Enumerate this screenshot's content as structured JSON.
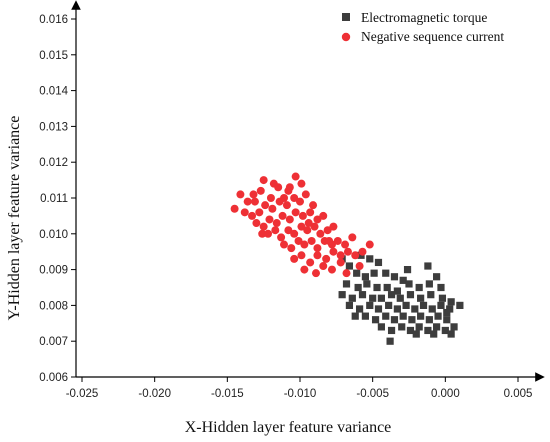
{
  "chart_data": {
    "type": "scatter",
    "title": "",
    "xlabel": "X-Hidden layer feature variance",
    "ylabel": "Y-Hidden layer feature variance",
    "xlim": [
      -0.025,
      0.005
    ],
    "ylim": [
      0.006,
      0.016
    ],
    "x_ticks": [
      "-0.025",
      "-0.020",
      "-0.015",
      "-0.010",
      "-0.005",
      "0.000",
      "0.005"
    ],
    "y_ticks": [
      "0.006",
      "0.007",
      "0.008",
      "0.009",
      "0.010",
      "0.011",
      "0.012",
      "0.013",
      "0.014",
      "0.015",
      "0.016"
    ],
    "x_tick_values": [
      -0.025,
      -0.02,
      -0.015,
      -0.01,
      -0.005,
      0.0,
      0.005
    ],
    "y_tick_values": [
      0.006,
      0.007,
      0.008,
      0.009,
      0.01,
      0.011,
      0.012,
      0.013,
      0.014,
      0.015,
      0.016
    ],
    "grid": false,
    "legend_position": "top-right",
    "series": [
      {
        "name": "Electromagnetic torque",
        "marker": "square",
        "color": "#3d3d3d",
        "points": [
          [
            -0.0071,
            0.0093
          ],
          [
            -0.0066,
            0.0091
          ],
          [
            -0.0058,
            0.0094
          ],
          [
            -0.0052,
            0.0093
          ],
          [
            -0.0046,
            0.0092
          ],
          [
            -0.0061,
            0.0089
          ],
          [
            -0.0055,
            0.0088
          ],
          [
            -0.0049,
            0.0089
          ],
          [
            -0.0041,
            0.0089
          ],
          [
            -0.0035,
            0.0088
          ],
          [
            -0.0029,
            0.0087
          ],
          [
            -0.0068,
            0.0086
          ],
          [
            -0.006,
            0.0085
          ],
          [
            -0.0054,
            0.0086
          ],
          [
            -0.0047,
            0.0085
          ],
          [
            -0.004,
            0.0085
          ],
          [
            -0.0033,
            0.0084
          ],
          [
            -0.0025,
            0.0086
          ],
          [
            -0.0018,
            0.0085
          ],
          [
            -0.0011,
            0.0086
          ],
          [
            -0.0003,
            0.0085
          ],
          [
            -0.0071,
            0.0083
          ],
          [
            -0.0064,
            0.0082
          ],
          [
            -0.0057,
            0.0083
          ],
          [
            -0.005,
            0.0082
          ],
          [
            -0.0044,
            0.0082
          ],
          [
            -0.0037,
            0.0083
          ],
          [
            -0.0031,
            0.0082
          ],
          [
            -0.0024,
            0.0083
          ],
          [
            -0.0017,
            0.0082
          ],
          [
            -0.001,
            0.0083
          ],
          [
            -0.0002,
            0.0082
          ],
          [
            0.0004,
            0.0081
          ],
          [
            -0.0066,
            0.008
          ],
          [
            -0.0059,
            0.0079
          ],
          [
            -0.0052,
            0.008
          ],
          [
            -0.0046,
            0.0079
          ],
          [
            -0.0039,
            0.008
          ],
          [
            -0.0033,
            0.0079
          ],
          [
            -0.0027,
            0.008
          ],
          [
            -0.0021,
            0.0079
          ],
          [
            -0.0015,
            0.008
          ],
          [
            -0.0009,
            0.0079
          ],
          [
            -0.0003,
            0.008
          ],
          [
            0.0003,
            0.0079
          ],
          [
            0.001,
            0.008
          ],
          [
            -0.0062,
            0.0077
          ],
          [
            -0.0055,
            0.0077
          ],
          [
            -0.0048,
            0.0076
          ],
          [
            -0.0041,
            0.0077
          ],
          [
            -0.0035,
            0.0076
          ],
          [
            -0.0029,
            0.0077
          ],
          [
            -0.0023,
            0.0076
          ],
          [
            -0.0017,
            0.0077
          ],
          [
            -0.0011,
            0.0076
          ],
          [
            -0.0005,
            0.0077
          ],
          [
            0.0001,
            0.0076
          ],
          [
            0.0006,
            0.0074
          ],
          [
            -0.0044,
            0.0074
          ],
          [
            -0.0037,
            0.0073
          ],
          [
            -0.003,
            0.0074
          ],
          [
            -0.0024,
            0.0073
          ],
          [
            -0.0018,
            0.0074
          ],
          [
            -0.0012,
            0.0073
          ],
          [
            -0.0006,
            0.0074
          ],
          [
            0.0,
            0.0073
          ],
          [
            -0.0038,
            0.007
          ],
          [
            -0.002,
            0.0072
          ],
          [
            -0.0008,
            0.0072
          ],
          [
            0.0004,
            0.0072
          ],
          [
            -0.0026,
            0.009
          ],
          [
            -0.0012,
            0.0091
          ],
          [
            -0.0006,
            0.0088
          ],
          [
            0.0001,
            0.0078
          ]
        ]
      },
      {
        "name": "Negative sequence current",
        "marker": "circle",
        "color": "#ee3035",
        "points": [
          [
            -0.0145,
            0.0107
          ],
          [
            -0.0141,
            0.0111
          ],
          [
            -0.0136,
            0.0109
          ],
          [
            -0.0132,
            0.0111
          ],
          [
            -0.0127,
            0.0112
          ],
          [
            -0.0125,
            0.0115
          ],
          [
            -0.012,
            0.011
          ],
          [
            -0.0115,
            0.0113
          ],
          [
            -0.0111,
            0.011
          ],
          [
            -0.0107,
            0.0113
          ],
          [
            -0.0103,
            0.0116
          ],
          [
            -0.0099,
            0.0114
          ],
          [
            -0.0138,
            0.0106
          ],
          [
            -0.0133,
            0.0105
          ],
          [
            -0.0128,
            0.0106
          ],
          [
            -0.0124,
            0.0108
          ],
          [
            -0.0119,
            0.0107
          ],
          [
            -0.0114,
            0.0109
          ],
          [
            -0.0109,
            0.0108
          ],
          [
            -0.0104,
            0.011
          ],
          [
            -0.01,
            0.0109
          ],
          [
            -0.0096,
            0.0111
          ],
          [
            -0.0091,
            0.0108
          ],
          [
            -0.013,
            0.0103
          ],
          [
            -0.0125,
            0.0102
          ],
          [
            -0.0121,
            0.0104
          ],
          [
            -0.0116,
            0.0103
          ],
          [
            -0.0112,
            0.0105
          ],
          [
            -0.0107,
            0.0104
          ],
          [
            -0.0103,
            0.0106
          ],
          [
            -0.0098,
            0.0105
          ],
          [
            -0.0093,
            0.0106
          ],
          [
            -0.0088,
            0.0104
          ],
          [
            -0.0084,
            0.0105
          ],
          [
            -0.0122,
            0.01
          ],
          [
            -0.0117,
            0.0101
          ],
          [
            -0.0113,
            0.0099
          ],
          [
            -0.0108,
            0.0101
          ],
          [
            -0.0104,
            0.01
          ],
          [
            -0.0099,
            0.0102
          ],
          [
            -0.0095,
            0.0101
          ],
          [
            -0.009,
            0.0102
          ],
          [
            -0.0086,
            0.01
          ],
          [
            -0.0081,
            0.0101
          ],
          [
            -0.0077,
            0.0102
          ],
          [
            -0.0111,
            0.0097
          ],
          [
            -0.0106,
            0.0096
          ],
          [
            -0.0101,
            0.0098
          ],
          [
            -0.0097,
            0.0097
          ],
          [
            -0.0092,
            0.0098
          ],
          [
            -0.0088,
            0.0096
          ],
          [
            -0.0083,
            0.0098
          ],
          [
            -0.0078,
            0.0097
          ],
          [
            -0.0074,
            0.0098
          ],
          [
            -0.0069,
            0.0097
          ],
          [
            -0.0064,
            0.0099
          ],
          [
            -0.0104,
            0.0093
          ],
          [
            -0.0099,
            0.0094
          ],
          [
            -0.0093,
            0.0092
          ],
          [
            -0.0088,
            0.0094
          ],
          [
            -0.0082,
            0.0093
          ],
          [
            -0.0077,
            0.0095
          ],
          [
            -0.0072,
            0.0094
          ],
          [
            -0.0067,
            0.0095
          ],
          [
            -0.0062,
            0.0094
          ],
          [
            -0.0057,
            0.0095
          ],
          [
            -0.0052,
            0.0097
          ],
          [
            -0.0084,
            0.0091
          ],
          [
            -0.0078,
            0.009
          ],
          [
            -0.0072,
            0.0092
          ],
          [
            -0.0097,
            0.009
          ],
          [
            -0.0089,
            0.0089
          ],
          [
            -0.0068,
            0.0089
          ],
          [
            -0.0131,
            0.0109
          ],
          [
            -0.0118,
            0.0114
          ],
          [
            -0.0108,
            0.0112
          ],
          [
            -0.0126,
            0.01
          ],
          [
            -0.0094,
            0.0103
          ],
          [
            -0.008,
            0.0098
          ],
          [
            -0.0059,
            0.0091
          ]
        ]
      }
    ]
  }
}
